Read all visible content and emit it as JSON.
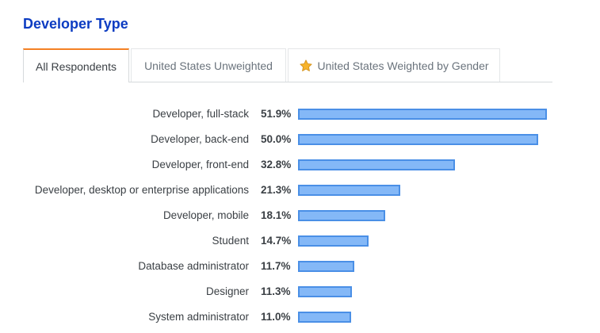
{
  "title": "Developer Type",
  "tabs": [
    {
      "label": "All Respondents",
      "active": true
    },
    {
      "label": "United States Unweighted",
      "active": false
    },
    {
      "label": "United States Weighted by Gender",
      "active": false,
      "icon": "star-icon"
    }
  ],
  "colors": {
    "title": "#0c3cc2",
    "active_tab_accent": "#f48024",
    "bar_fill": "#84b8f7",
    "bar_border": "#4a8fe6",
    "star": "#f7b32b"
  },
  "chart_data": {
    "type": "bar",
    "orientation": "horizontal",
    "categories": [
      "Developer, full-stack",
      "Developer, back-end",
      "Developer, front-end",
      "Developer, desktop or enterprise applications",
      "Developer, mobile",
      "Student",
      "Database administrator",
      "Designer",
      "System administrator"
    ],
    "values": [
      51.9,
      50.0,
      32.8,
      21.3,
      18.1,
      14.7,
      11.7,
      11.3,
      11.0
    ],
    "value_labels": [
      "51.9%",
      "50.0%",
      "32.8%",
      "21.3%",
      "18.1%",
      "14.7%",
      "11.7%",
      "11.3%",
      "11.0%"
    ],
    "unit": "%",
    "grid": false
  }
}
